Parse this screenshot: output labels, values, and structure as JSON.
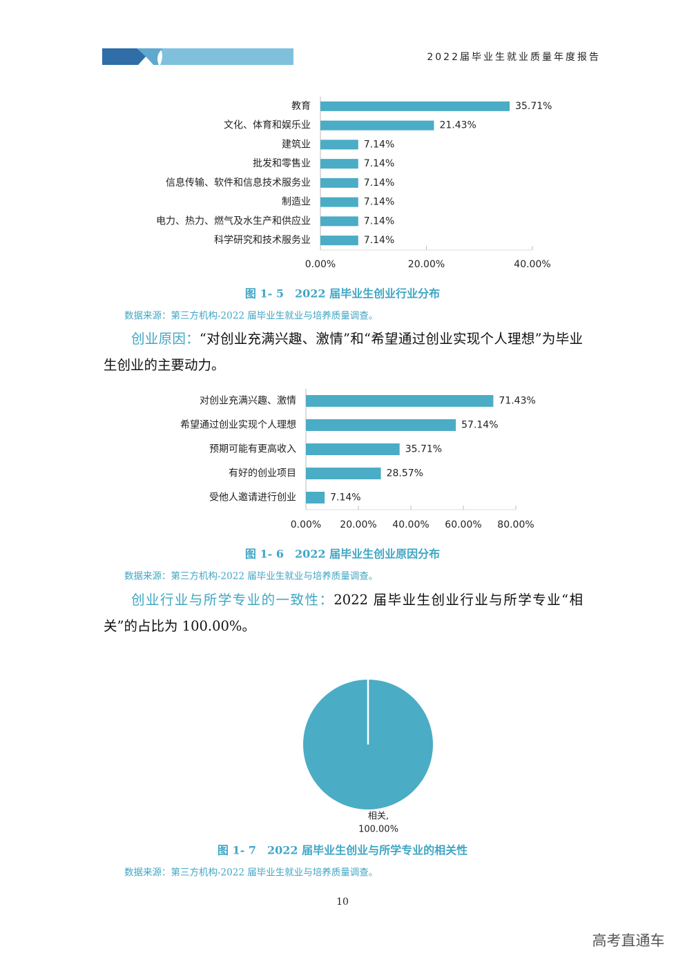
{
  "header": {
    "title": "2022届毕业生就业质量年度报告"
  },
  "chart_data": [
    {
      "type": "hbar",
      "title": "图 1- 5　2022 届毕业生创业行业分布",
      "source": "数据来源：第三方机构-2022 届毕业生就业与培养质量调查。",
      "categories": [
        "教育",
        "文化、体育和娱乐业",
        "建筑业",
        "批发和零售业",
        "信息传输、软件和信息技术服务业",
        "制造业",
        "电力、热力、燃气及水生产和供应业",
        "科学研究和技术服务业"
      ],
      "values": [
        35.71,
        21.43,
        7.14,
        7.14,
        7.14,
        7.14,
        7.14,
        7.14
      ],
      "value_labels": [
        "35.71%",
        "21.43%",
        "7.14%",
        "7.14%",
        "7.14%",
        "7.14%",
        "7.14%",
        "7.14%"
      ],
      "color": "#4bacc6",
      "xlim": [
        0,
        40
      ],
      "xticks": [
        {
          "value": 0,
          "label": "0.00%"
        },
        {
          "value": 20,
          "label": "20.00%"
        },
        {
          "value": 40,
          "label": "40.00%"
        }
      ]
    },
    {
      "type": "hbar",
      "title": "图 1- 6　2022 届毕业生创业原因分布",
      "source": "数据来源：第三方机构-2022 届毕业生就业与培养质量调查。",
      "categories": [
        "对创业充满兴趣、激情",
        "希望通过创业实现个人理想",
        "预期可能有更高收入",
        "有好的创业项目",
        "受他人邀请进行创业"
      ],
      "values": [
        71.43,
        57.14,
        35.71,
        28.57,
        7.14
      ],
      "value_labels": [
        "71.43%",
        "57.14%",
        "35.71%",
        "28.57%",
        "7.14%"
      ],
      "color": "#4bacc6",
      "xlim": [
        0,
        80
      ],
      "xticks": [
        {
          "value": 0,
          "label": "0.00%"
        },
        {
          "value": 20,
          "label": "20.00%"
        },
        {
          "value": 40,
          "label": "40.00%"
        },
        {
          "value": 60,
          "label": "60.00%"
        },
        {
          "value": 80,
          "label": "80.00%"
        }
      ]
    },
    {
      "type": "pie",
      "title": "图 1- 7　2022 届毕业生创业与所学专业的相关性",
      "source": "数据来源：第三方机构-2022 届毕业生就业与培养质量调查。",
      "categories": [
        "相关,"
      ],
      "values": [
        100
      ],
      "value_labels": [
        "100.00%"
      ],
      "color": "#4bacc6"
    }
  ],
  "paragraphs": [
    {
      "lead": "创业原因：",
      "text": "“对创业充满兴趣、激情”和“希望通过创业实现个人理想”为毕业生创业的主要动力。"
    },
    {
      "lead": "创业行业与所学专业的一致性：",
      "text": "2022 届毕业生创业行业与所学专业“相关”的占比为 100.00%。"
    }
  ],
  "page_number": "10",
  "watermark": "高考直通车"
}
